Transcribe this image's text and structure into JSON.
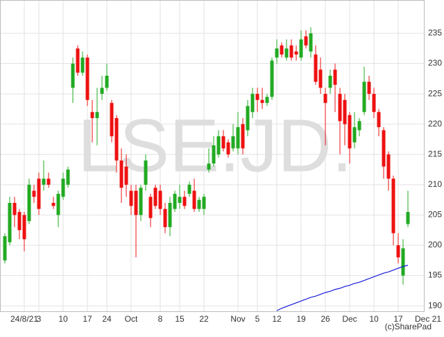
{
  "chart_data": {
    "type": "candlestick",
    "watermark": "LSE.JD.",
    "credit": "(c)SharePad",
    "axis_end_label": "Dec 21",
    "categories": [
      null,
      null,
      null,
      null,
      "24/8/21",
      null,
      null,
      "3",
      null,
      null,
      null,
      null,
      "10",
      null,
      null,
      null,
      null,
      "17",
      null,
      null,
      null,
      "24",
      null,
      null,
      null,
      null,
      "Oct",
      null,
      null,
      null,
      null,
      null,
      "8",
      null,
      null,
      null,
      "15",
      null,
      null,
      null,
      null,
      "22",
      null,
      null,
      null,
      null,
      null,
      null,
      "Nov",
      null,
      null,
      null,
      "5",
      null,
      null,
      null,
      "12",
      null,
      null,
      null,
      null,
      "19",
      null,
      null,
      null,
      null,
      "26",
      null,
      null,
      null,
      null,
      "Dec",
      null,
      null,
      null,
      null,
      "10",
      null,
      null,
      null,
      null,
      "17",
      null,
      null
    ],
    "open": [
      197.5,
      200.5,
      207,
      205.5,
      205,
      204,
      209,
      211,
      210,
      211,
      207,
      205,
      208,
      210,
      226,
      232.5,
      228.5,
      231,
      222,
      221,
      225,
      226,
      223.5,
      221,
      214,
      213,
      209,
      209,
      205,
      210,
      208,
      209.5,
      209,
      206,
      203,
      206,
      207,
      208,
      208.5,
      209,
      206,
      206,
      212.5,
      213.5,
      215,
      218,
      217,
      216,
      216,
      220,
      219,
      222,
      225,
      224,
      223.5,
      224.5,
      231,
      233,
      231,
      233,
      232,
      231,
      234.5,
      232,
      231.5,
      229,
      225,
      226,
      229,
      225,
      224,
      221.5,
      217,
      219,
      222,
      227,
      225,
      222,
      219,
      215,
      211,
      200,
      195,
      203.5
    ],
    "high": [
      202,
      208,
      208,
      206,
      205.5,
      211,
      210,
      212,
      214,
      212,
      208,
      209,
      212,
      213,
      231,
      233,
      232,
      231.5,
      224,
      226,
      228,
      230,
      224,
      221.5,
      216,
      215,
      210,
      210,
      210,
      215,
      208.5,
      210,
      210,
      207,
      208,
      209,
      210,
      209,
      210.5,
      211,
      208,
      208.5,
      216,
      218,
      219,
      219,
      217.5,
      220,
      222,
      221,
      224,
      226,
      226,
      226,
      225,
      231,
      234,
      233.5,
      234,
      234,
      233,
      235.5,
      235.5,
      236,
      233,
      231,
      226,
      229,
      230,
      226,
      225,
      222,
      222,
      221,
      229.5,
      228,
      226,
      222.5,
      219.5,
      215.5,
      211.5,
      202,
      201,
      209
    ],
    "low": [
      197,
      200,
      203,
      201,
      199,
      203.5,
      207,
      205,
      209,
      209.5,
      206,
      203,
      207.5,
      209.5,
      223.5,
      228,
      228,
      223,
      217,
      216.5,
      224,
      225.5,
      217,
      212,
      207,
      208,
      205,
      198,
      204,
      209,
      203,
      206,
      205,
      202,
      201.5,
      205.5,
      206,
      206,
      208,
      205.5,
      205.5,
      205,
      212,
      213,
      214.5,
      215.5,
      214.5,
      215.5,
      215,
      215,
      218,
      221,
      222,
      222.5,
      223,
      224,
      230,
      231,
      230.5,
      230.5,
      230.5,
      230.5,
      232.5,
      231,
      226.5,
      225,
      216.5,
      225,
      222,
      215,
      216.5,
      213.5,
      216,
      218,
      221.5,
      224,
      221,
      218,
      211,
      209,
      200,
      197,
      193.5,
      203
    ],
    "close": [
      201.5,
      207,
      205,
      202.5,
      201,
      210,
      208,
      206,
      211,
      210,
      206.5,
      208.5,
      211,
      212.5,
      230,
      228.5,
      231,
      224,
      221,
      222,
      226,
      228,
      218,
      214,
      209.5,
      210,
      206.5,
      205,
      209.5,
      214,
      204.5,
      206.5,
      206,
      203,
      207,
      208.5,
      208,
      206.5,
      210,
      206,
      207.5,
      208,
      213.5,
      216.5,
      218,
      216,
      215,
      218,
      219.5,
      216,
      223,
      225,
      224,
      223.5,
      224.5,
      230.5,
      232.5,
      231.5,
      232.5,
      231,
      231.5,
      234,
      233,
      235,
      227,
      226,
      223.5,
      228,
      226.5,
      220.5,
      220,
      216,
      219.5,
      220.5,
      227,
      225,
      222,
      219.5,
      213,
      211,
      202,
      198,
      199.5,
      205.5
    ],
    "up_color": "#22aa22",
    "down_color": "#ee1111",
    "series": [
      {
        "type": "line",
        "color": "#1a1adc",
        "values": [
          null,
          null,
          null,
          null,
          null,
          null,
          null,
          null,
          null,
          null,
          null,
          null,
          null,
          null,
          null,
          null,
          null,
          null,
          null,
          null,
          null,
          null,
          null,
          null,
          null,
          null,
          null,
          null,
          null,
          null,
          null,
          null,
          null,
          null,
          null,
          null,
          null,
          null,
          null,
          null,
          null,
          null,
          null,
          null,
          null,
          null,
          null,
          null,
          null,
          null,
          null,
          null,
          null,
          null,
          null,
          null,
          189.2,
          189.6,
          189.9,
          190.2,
          190.5,
          190.8,
          191.1,
          191.4,
          191.6,
          191.9,
          192.2,
          192.4,
          192.7,
          192.9,
          193.2,
          193.4,
          193.7,
          193.9,
          194.2,
          194.5,
          194.8,
          195.1,
          195.4,
          195.6,
          195.9,
          196.2,
          196.5,
          196.7
        ]
      }
    ],
    "ylim": [
      189.1,
      240.5
    ],
    "yticks": [
      190,
      195,
      200,
      205,
      210,
      215,
      220,
      225,
      230,
      235
    ],
    "grid": true
  }
}
